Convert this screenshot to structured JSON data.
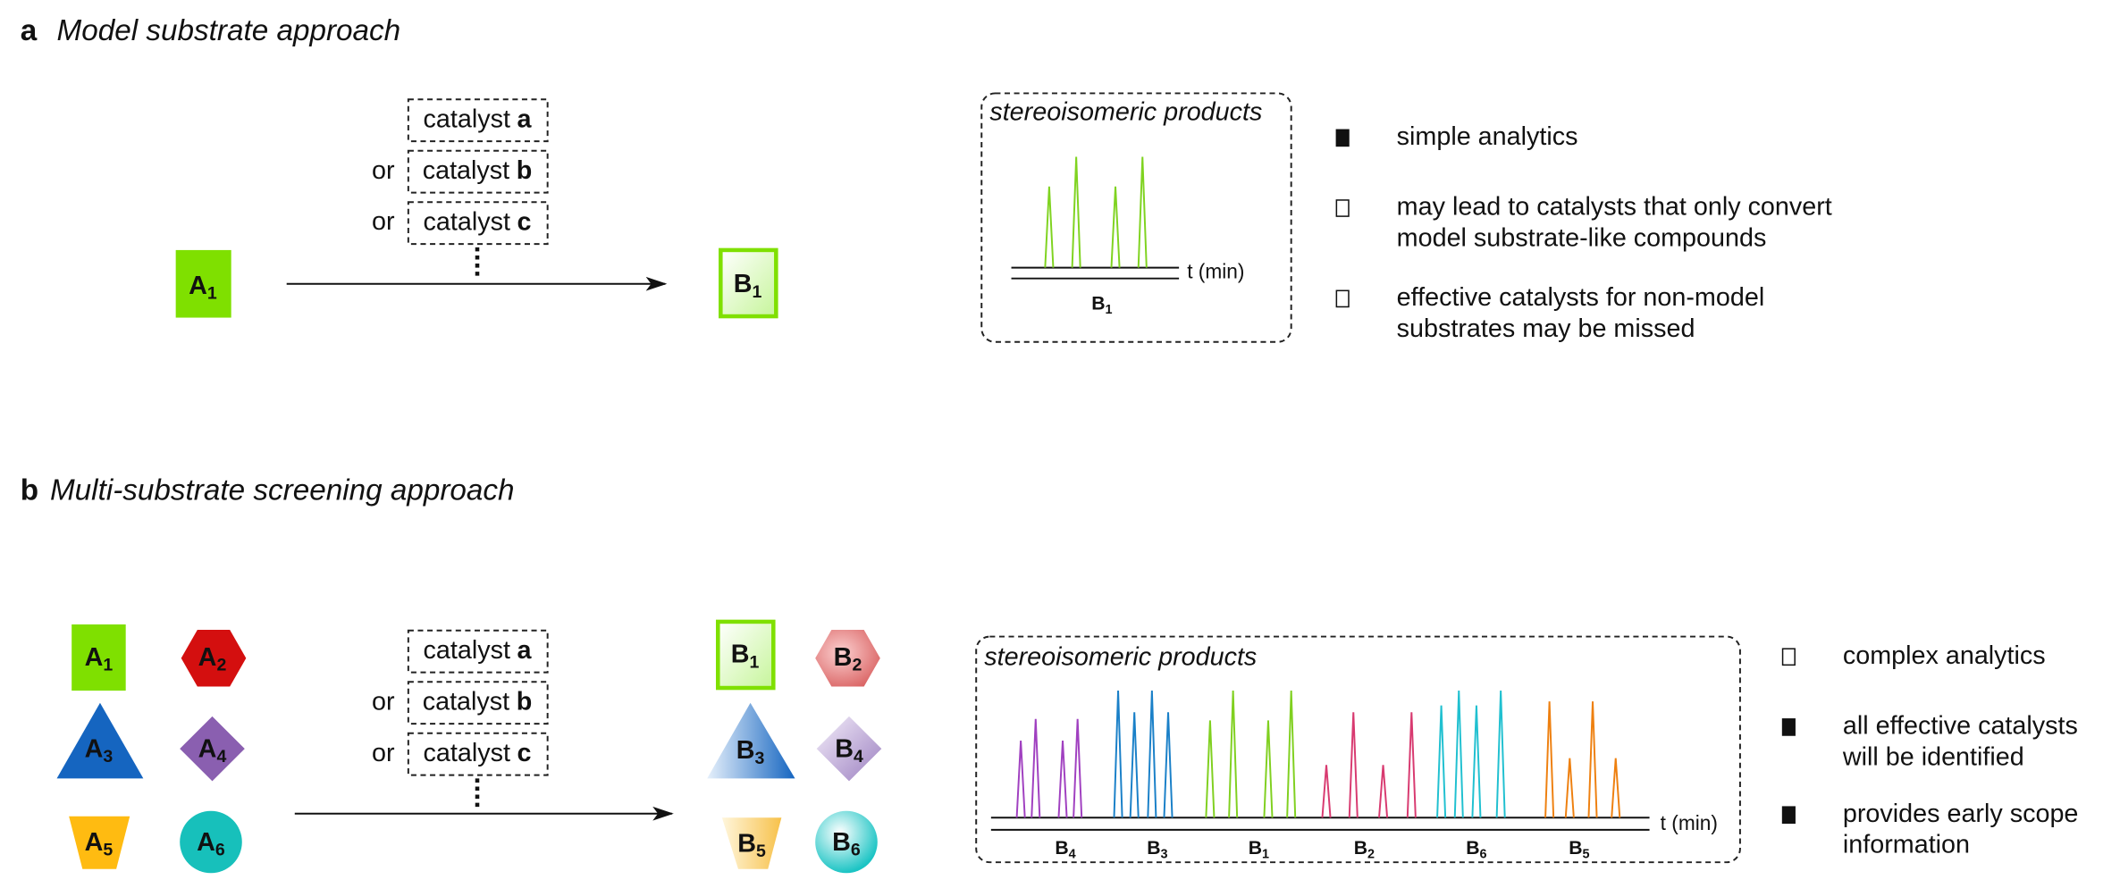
{
  "panel_a": {
    "letter": "a",
    "title": "Model substrate approach",
    "catalysts": [
      {
        "label": "catalyst",
        "id": "a"
      },
      {
        "prefix": "or",
        "label": "catalyst",
        "id": "b"
      },
      {
        "prefix": "or",
        "label": "catalyst",
        "id": "c"
      }
    ],
    "substrates": [
      {
        "base": "A",
        "sub": "1"
      }
    ],
    "products": [
      {
        "base": "B",
        "sub": "1"
      }
    ],
    "analysis": {
      "title": "stereoisomeric products",
      "axis": "t (min)",
      "peaks": [
        {
          "base": "B",
          "sub": "1"
        }
      ]
    },
    "points": [
      {
        "lines": [
          "simple analytics"
        ]
      },
      {
        "lines": [
          "may lead to catalysts that only convert",
          "model substrate-like compounds"
        ]
      },
      {
        "lines": [
          "effective catalysts for non-model",
          "substrates may be missed"
        ]
      }
    ]
  },
  "panel_b": {
    "letter": "b",
    "title": "Multi-substrate screening approach",
    "catalysts": [
      {
        "label": "catalyst",
        "id": "a"
      },
      {
        "prefix": "or",
        "label": "catalyst",
        "id": "b"
      },
      {
        "prefix": "or",
        "label": "catalyst",
        "id": "c"
      }
    ],
    "substrates": [
      {
        "base": "A",
        "sub": "1"
      },
      {
        "base": "A",
        "sub": "2"
      },
      {
        "base": "A",
        "sub": "3"
      },
      {
        "base": "A",
        "sub": "4"
      },
      {
        "base": "A",
        "sub": "5"
      },
      {
        "base": "A",
        "sub": "6"
      }
    ],
    "products": [
      {
        "base": "B",
        "sub": "1"
      },
      {
        "base": "B",
        "sub": "2"
      },
      {
        "base": "B",
        "sub": "3"
      },
      {
        "base": "B",
        "sub": "4"
      },
      {
        "base": "B",
        "sub": "5"
      },
      {
        "base": "B",
        "sub": "6"
      }
    ],
    "analysis": {
      "title": "stereoisomeric products",
      "axis": "t (min)",
      "peaks": [
        {
          "base": "B",
          "sub": "4"
        },
        {
          "base": "B",
          "sub": "3"
        },
        {
          "base": "B",
          "sub": "1"
        },
        {
          "base": "B",
          "sub": "2"
        },
        {
          "base": "B",
          "sub": "6"
        },
        {
          "base": "B",
          "sub": "5"
        }
      ]
    },
    "points": [
      {
        "lines": [
          "complex analytics"
        ]
      },
      {
        "lines": [
          "all effective catalysts",
          "will be identified"
        ]
      },
      {
        "lines": [
          "provides early scope",
          "information"
        ]
      }
    ]
  }
}
